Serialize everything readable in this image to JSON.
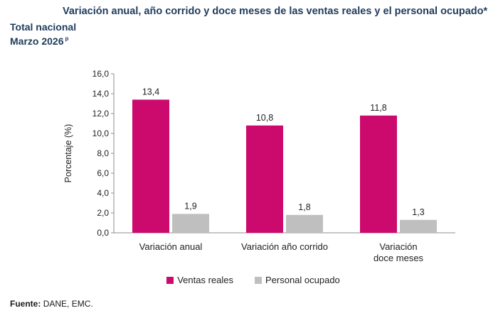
{
  "header": {
    "title": "Variación anual, año corrido y doce meses de las ventas reales y el personal ocupado*",
    "subtitle_line1": "Total nacional",
    "subtitle_line2": "Marzo 2026",
    "subtitle_superscript": "p"
  },
  "chart_data": {
    "type": "bar",
    "categories": [
      "Variación anual",
      "Variación año corrido",
      "Variación doce meses"
    ],
    "category_lines": [
      [
        "Variación anual"
      ],
      [
        "Variación año corrido"
      ],
      [
        "Variación",
        "doce meses"
      ]
    ],
    "series": [
      {
        "name": "Ventas reales",
        "values": [
          13.4,
          10.8,
          11.8
        ],
        "color": "#cc0a6e"
      },
      {
        "name": "Personal ocupado",
        "values": [
          1.9,
          1.8,
          1.3
        ],
        "color": "#bfbfbf"
      }
    ],
    "value_labels": [
      [
        "13,4",
        "10,8",
        "11,8"
      ],
      [
        "1,9",
        "1,8",
        "1,3"
      ]
    ],
    "ylabel": "Porcentaje (%)",
    "ylim": [
      0,
      16
    ],
    "yticks": [
      "0,0",
      "2,0",
      "4,0",
      "6,0",
      "8,0",
      "10,0",
      "12,0",
      "14,0",
      "16,0"
    ],
    "grid": false,
    "legend_position": "bottom"
  },
  "source": {
    "label": "Fuente:",
    "text": "DANE, EMC."
  }
}
